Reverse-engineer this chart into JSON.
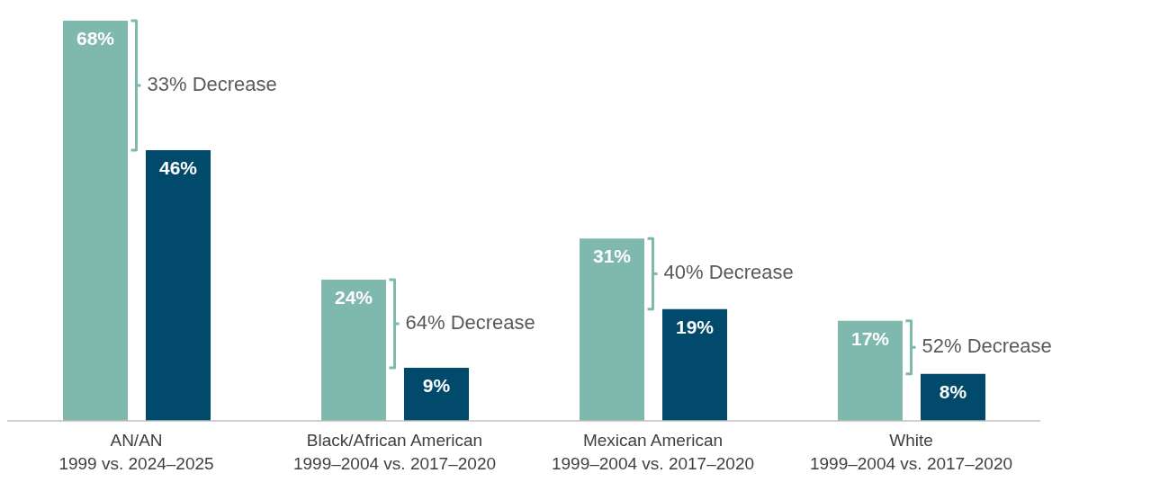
{
  "chart_data": {
    "type": "bar",
    "grid": false,
    "legend": false,
    "categories": [
      "AN/AN\n1999 vs. 2024–2025",
      "Black/African American\n1999–2004 vs. 2017–2020",
      "Mexican American\n1999–2004 vs. 2017–2020",
      "White\n1999–2004 vs. 2017–2020"
    ],
    "series": [
      {
        "color": "#7fb8ad",
        "values": [
          68,
          24,
          31,
          17
        ],
        "value_labels": [
          "68%",
          "24%",
          "31%",
          "17%"
        ]
      },
      {
        "color": "#024a6b",
        "values": [
          46,
          9,
          19,
          8
        ],
        "value_labels": [
          "46%",
          "9%",
          "19%",
          "8%"
        ]
      }
    ],
    "annotations": [
      "33% Decrease",
      "64% Decrease",
      "40% Decrease",
      "52% Decrease"
    ]
  }
}
